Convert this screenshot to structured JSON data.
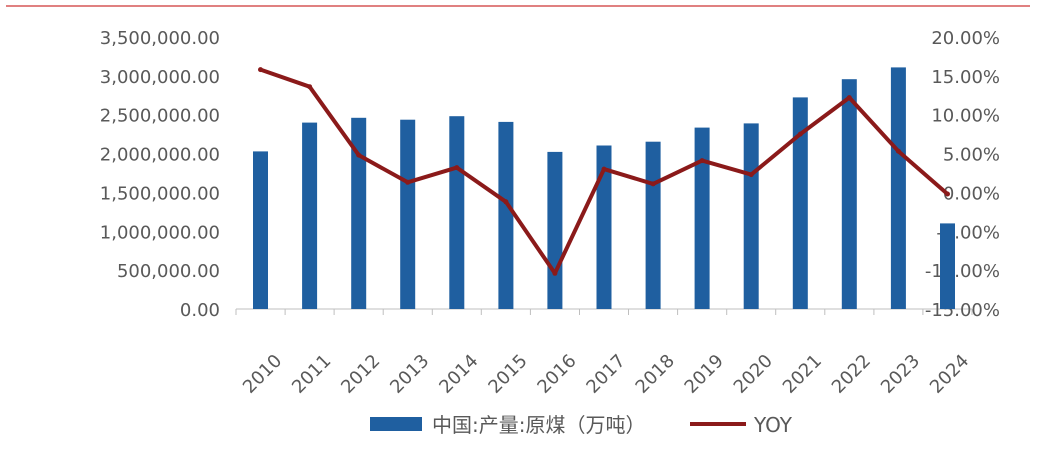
{
  "chart_data": {
    "type": "bar",
    "title": "",
    "xlabel": "",
    "ylabel": "",
    "categories": [
      "2010",
      "2011",
      "2012",
      "2013",
      "2014",
      "2015",
      "2016",
      "2017",
      "2018",
      "2019",
      "2020",
      "2021",
      "2022",
      "2023",
      "2024"
    ],
    "series": [
      {
        "name": "中国:产量:原煤（万吨）",
        "kind": "bar",
        "axis": "left",
        "values": [
          2028400,
          2398300,
          2460100,
          2436400,
          2481200,
          2408100,
          2021100,
          2104400,
          2153100,
          2334400,
          2388600,
          2722600,
          2956600,
          3108300,
          1101000
        ]
      },
      {
        "name": "YOY",
        "kind": "line",
        "axis": "right",
        "values": [
          15.8,
          13.6,
          4.8,
          1.3,
          3.2,
          -1.2,
          -10.4,
          3.0,
          1.1,
          4.1,
          2.3,
          7.5,
          12.2,
          5.3,
          -0.2
        ]
      }
    ],
    "y_left": {
      "min": 0,
      "max": 3500000,
      "ticks": [
        0,
        500000,
        1000000,
        1500000,
        2000000,
        2500000,
        3000000,
        3500000
      ],
      "tick_labels": [
        "0.00",
        "500,000.00",
        "1,000,000.00",
        "1,500,000.00",
        "2,000,000.00",
        "2,500,000.00",
        "3,000,000.00",
        "3,500,000.00"
      ]
    },
    "y_right": {
      "min": -15,
      "max": 20,
      "ticks": [
        -15,
        -10,
        -5,
        0,
        5,
        10,
        15,
        20
      ],
      "tick_labels": [
        "-15.00%",
        "-10.00%",
        "-5.00%",
        "0.00%",
        "5.00%",
        "10.00%",
        "15.00%",
        "20.00%"
      ]
    },
    "grid": false,
    "legend": "bottom",
    "colors": {
      "bar": "#1f5fa0",
      "line": "#8b1a1a",
      "axis": "#bfbfbf",
      "text": "#595959",
      "top_rule": "#c00000"
    }
  }
}
